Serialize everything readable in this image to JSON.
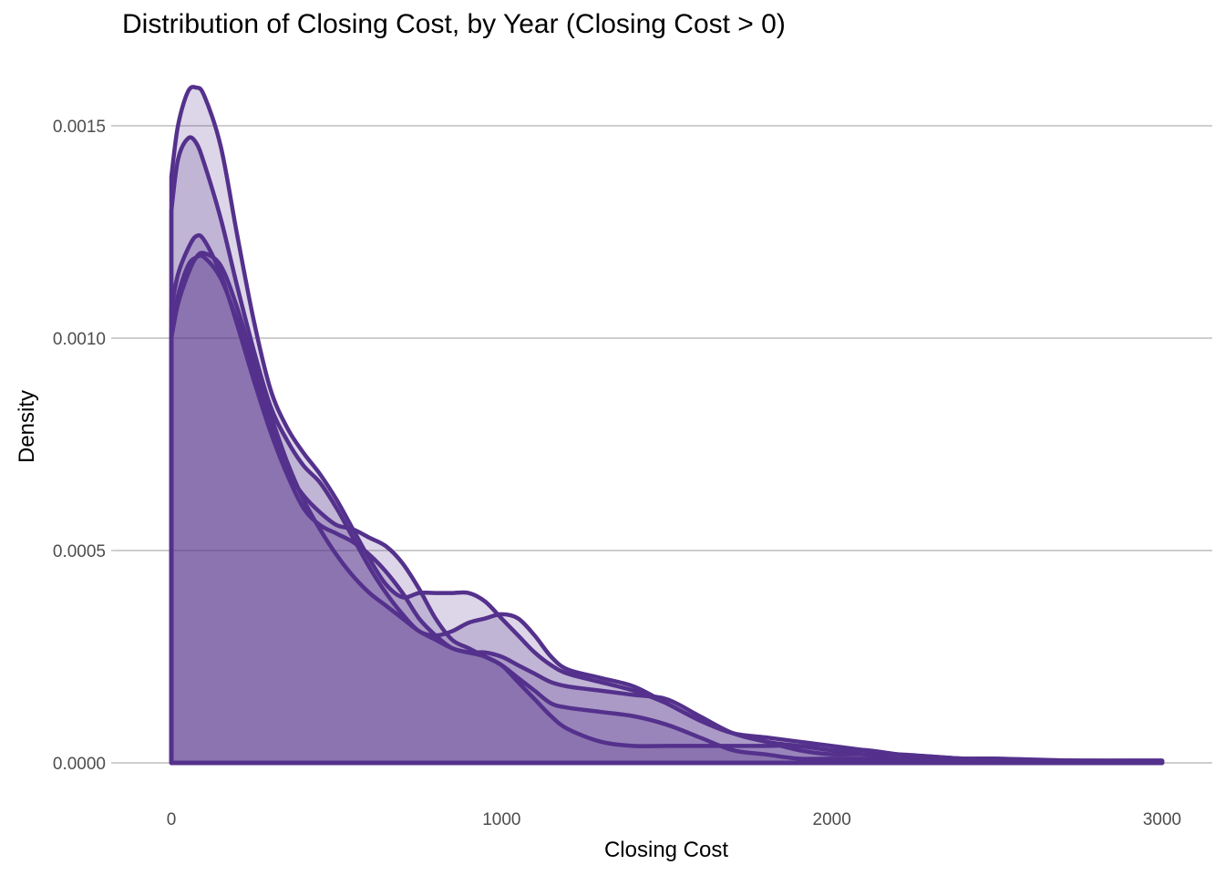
{
  "chart_data": {
    "type": "area",
    "title": "Distribution of Closing Cost, by Year (Closing Cost > 0)",
    "xlabel": "Closing Cost",
    "ylabel": "Density",
    "xlim": [
      0,
      3000
    ],
    "ylim": [
      0,
      0.0015
    ],
    "x_ticks": [
      0,
      1000,
      2000,
      3000
    ],
    "x_tick_labels": [
      "0",
      "1000",
      "2000",
      "3000"
    ],
    "y_ticks": [
      0,
      0.0005,
      0.001,
      0.0015
    ],
    "y_tick_labels": [
      "0.0000",
      "0.0005",
      "0.0010",
      "0.0015"
    ],
    "grid": "horizontal",
    "legend": "none",
    "colors": {
      "line": "#54318c",
      "fill": "#54318c",
      "fill_opacity": 0.2,
      "grid": "#bdbdbd"
    },
    "series": [
      {
        "x": [
          0,
          20,
          50,
          75,
          100,
          150,
          200,
          250,
          300,
          350,
          400,
          450,
          500,
          550,
          600,
          650,
          700,
          750,
          800,
          850,
          900,
          950,
          1000,
          1050,
          1100,
          1150,
          1200,
          1300,
          1400,
          1500,
          1600,
          1700,
          1800,
          1900,
          2000,
          2100,
          2200,
          2300,
          2400,
          2500,
          2600,
          2700,
          2800,
          2900,
          3000
        ],
        "values": [
          0.00138,
          0.0015,
          0.00158,
          0.00159,
          0.00157,
          0.00145,
          0.00124,
          0.00104,
          0.00088,
          0.00079,
          0.00073,
          0.00068,
          0.00062,
          0.00055,
          0.00048,
          0.00042,
          0.00039,
          0.0004,
          0.0004,
          0.0004,
          0.0004,
          0.00038,
          0.00034,
          0.0003,
          0.00026,
          0.00023,
          0.00021,
          0.00019,
          0.00017,
          0.00014,
          0.0001,
          7e-05,
          6e-05,
          5e-05,
          4e-05,
          3e-05,
          2e-05,
          1.5e-05,
          1e-05,
          1e-05,
          7e-06,
          5e-06,
          5e-06,
          5e-06,
          5e-06
        ]
      },
      {
        "x": [
          0,
          20,
          50,
          75,
          100,
          150,
          200,
          250,
          300,
          350,
          400,
          450,
          500,
          550,
          600,
          650,
          700,
          750,
          800,
          850,
          900,
          950,
          1000,
          1050,
          1100,
          1150,
          1200,
          1300,
          1400,
          1500,
          1600,
          1700,
          1800,
          1900,
          2000,
          2100,
          2200,
          2300,
          2400,
          2500,
          2600,
          2700,
          2800,
          2900,
          3000
        ],
        "values": [
          0.0013,
          0.00142,
          0.00147,
          0.00146,
          0.00141,
          0.00128,
          0.00112,
          0.00097,
          0.00084,
          0.00076,
          0.0007,
          0.00066,
          0.0006,
          0.00053,
          0.00046,
          0.0004,
          0.00035,
          0.00031,
          0.0003,
          0.00031,
          0.00033,
          0.00034,
          0.00035,
          0.00034,
          0.0003,
          0.00025,
          0.00022,
          0.0002,
          0.00018,
          0.00014,
          0.0001,
          7e-05,
          5e-05,
          4e-05,
          3e-05,
          3e-05,
          2e-05,
          1e-05,
          8e-06,
          8e-06,
          5e-06,
          5e-06,
          5e-06,
          5e-06,
          5e-06
        ]
      },
      {
        "x": [
          0,
          20,
          50,
          75,
          100,
          150,
          200,
          250,
          300,
          350,
          400,
          450,
          500,
          550,
          600,
          650,
          700,
          750,
          800,
          850,
          900,
          950,
          1000,
          1050,
          1100,
          1150,
          1200,
          1300,
          1400,
          1500,
          1600,
          1700,
          1800,
          1900,
          2000,
          2100,
          2200,
          2300,
          2400,
          2500,
          2600,
          2700,
          2800,
          2900,
          3000
        ],
        "values": [
          0.00107,
          0.00115,
          0.00121,
          0.00124,
          0.00123,
          0.00115,
          0.00103,
          0.0009,
          0.00078,
          0.00068,
          0.0006,
          0.00056,
          0.00054,
          0.00052,
          0.00049,
          0.00045,
          0.0004,
          0.00034,
          0.0003,
          0.00027,
          0.00026,
          0.00025,
          0.00023,
          0.0002,
          0.00017,
          0.00014,
          0.00013,
          0.00012,
          0.00011,
          9e-05,
          6e-05,
          3e-05,
          2e-05,
          1e-05,
          1e-05,
          1e-05,
          1e-05,
          8e-06,
          8e-06,
          8e-06,
          6e-06,
          5e-06,
          5e-06,
          5e-06,
          5e-06
        ]
      },
      {
        "x": [
          0,
          20,
          50,
          75,
          100,
          150,
          200,
          250,
          300,
          350,
          400,
          450,
          500,
          550,
          600,
          650,
          700,
          750,
          800,
          850,
          900,
          950,
          1000,
          1050,
          1100,
          1150,
          1200,
          1300,
          1400,
          1500,
          1600,
          1700,
          1800,
          1900,
          2000,
          2100,
          2200,
          2300,
          2400,
          2500,
          2600,
          2700,
          2800,
          2900,
          3000
        ],
        "values": [
          0.00102,
          0.0011,
          0.00117,
          0.00119,
          0.00119,
          0.00114,
          0.00104,
          0.00092,
          0.0008,
          0.00069,
          0.00063,
          0.00059,
          0.00056,
          0.00055,
          0.00053,
          0.00051,
          0.00047,
          0.00041,
          0.00034,
          0.00029,
          0.00027,
          0.00025,
          0.00023,
          0.00019,
          0.00015,
          0.00011,
          8e-05,
          5e-05,
          4e-05,
          4e-05,
          4e-05,
          4e-05,
          4e-05,
          4e-05,
          3e-05,
          2e-05,
          2e-05,
          1.5e-05,
          1e-05,
          8e-06,
          6e-06,
          5e-06,
          5e-06,
          5e-06,
          5e-06
        ]
      },
      {
        "x": [
          0,
          20,
          50,
          75,
          100,
          150,
          200,
          250,
          300,
          350,
          400,
          450,
          500,
          550,
          600,
          650,
          700,
          750,
          800,
          850,
          900,
          950,
          1000,
          1050,
          1100,
          1150,
          1200,
          1300,
          1400,
          1500,
          1600,
          1700,
          1800,
          1900,
          2000,
          2100,
          2200,
          2300,
          2400,
          2500,
          2600,
          2700,
          2800,
          2900,
          3000
        ],
        "values": [
          0.001,
          0.00108,
          0.00115,
          0.00119,
          0.0012,
          0.00117,
          0.00107,
          0.00094,
          0.00082,
          0.00071,
          0.00062,
          0.00055,
          0.00049,
          0.00044,
          0.0004,
          0.00037,
          0.00034,
          0.00031,
          0.00029,
          0.00027,
          0.00026,
          0.00026,
          0.00025,
          0.00023,
          0.00021,
          0.00019,
          0.00018,
          0.00017,
          0.00016,
          0.00015,
          0.00011,
          7e-05,
          5e-05,
          3e-05,
          2e-05,
          2e-05,
          1e-05,
          1e-05,
          1e-05,
          1e-05,
          8e-06,
          6e-06,
          5e-06,
          5e-06,
          5e-06
        ]
      }
    ]
  }
}
